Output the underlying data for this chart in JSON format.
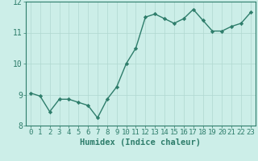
{
  "title": "",
  "xlabel": "Humidex (Indice chaleur)",
  "ylabel": "",
  "x": [
    0,
    1,
    2,
    3,
    4,
    5,
    6,
    7,
    8,
    9,
    10,
    11,
    12,
    13,
    14,
    15,
    16,
    17,
    18,
    19,
    20,
    21,
    22,
    23
  ],
  "y": [
    9.05,
    8.95,
    8.45,
    8.85,
    8.85,
    8.75,
    8.65,
    8.25,
    8.85,
    9.25,
    10.0,
    10.5,
    11.5,
    11.6,
    11.45,
    11.3,
    11.45,
    11.75,
    11.4,
    11.05,
    11.05,
    11.2,
    11.3,
    11.65
  ],
  "line_color": "#2e7d6b",
  "marker": "D",
  "marker_size": 2.2,
  "bg_color": "#cceee8",
  "grid_color": "#b0d8d0",
  "axis_color": "#2e7d6b",
  "ylim": [
    8.0,
    12.0
  ],
  "xlim": [
    -0.5,
    23.5
  ],
  "yticks": [
    8,
    9,
    10,
    11,
    12
  ],
  "xticks": [
    0,
    1,
    2,
    3,
    4,
    5,
    6,
    7,
    8,
    9,
    10,
    11,
    12,
    13,
    14,
    15,
    16,
    17,
    18,
    19,
    20,
    21,
    22,
    23
  ],
  "linewidth": 1.0,
  "font_color": "#2e7d6b",
  "xlabel_fontsize": 7.5,
  "tick_fontsize": 6.5,
  "ytick_fontsize": 7.0
}
